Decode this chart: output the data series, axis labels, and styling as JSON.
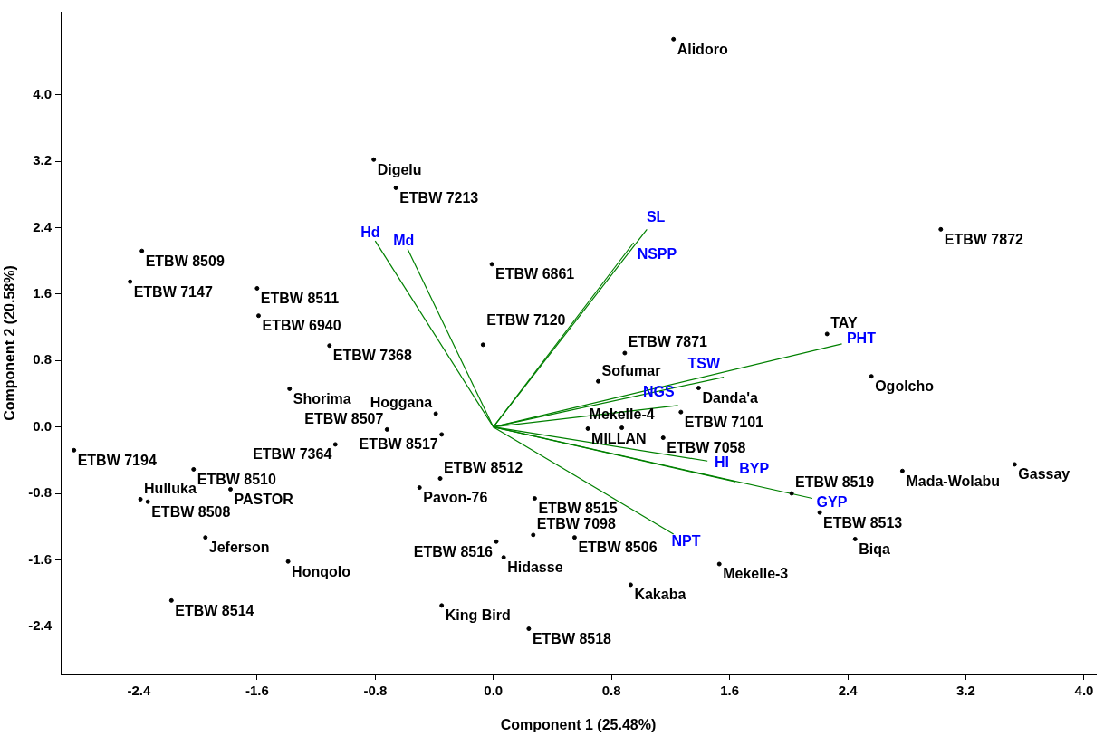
{
  "chart_data": {
    "type": "scatter",
    "xlabel": "Component 1 (25.48%)",
    "ylabel": "Component 2 (20.58%)",
    "xlim": [
      -2.93,
      4.08
    ],
    "ylim": [
      -2.98,
      5.0
    ],
    "xticks": [
      -2.4,
      -1.6,
      -0.8,
      {
        "value": 0,
        "label": "0.0"
      },
      0.8,
      1.6,
      2.4,
      3.2,
      {
        "value": 4,
        "label": "4.0"
      }
    ],
    "yticks": [
      -2.4,
      -1.6,
      -0.8,
      {
        "value": 0,
        "label": "0.0"
      },
      0.8,
      1.6,
      2.4,
      3.2,
      {
        "value": 4,
        "label": "4.0"
      }
    ],
    "grid": false,
    "legend": false,
    "marker": "circle",
    "series": [
      {
        "type": "scatter",
        "color": "#000000",
        "x": [
          1.22,
          -0.81,
          -0.66,
          -2.38,
          -2.46,
          -1.6,
          -1.59,
          -1.11,
          -1.38,
          -0.01,
          -0.07,
          -0.39,
          -0.72,
          -0.35,
          -1.07,
          -2.84,
          -2.03,
          -1.78,
          -2.39,
          -2.34,
          -1.95,
          -1.39,
          -2.18,
          -0.5,
          -0.36,
          0.28,
          0.02,
          0.07,
          0.27,
          0.55,
          0.64,
          0.87,
          0.71,
          0.89,
          1.39,
          1.27,
          1.15,
          2.26,
          2.56,
          3.03,
          2.77,
          3.53,
          2.02,
          2.21,
          2.45,
          1.53,
          0.93,
          -0.35,
          0.24
        ],
        "values": [
          4.67,
          3.22,
          2.88,
          2.12,
          1.75,
          1.67,
          1.34,
          0.98,
          0.46,
          1.96,
          0.99,
          0.16,
          -0.03,
          -0.09,
          -0.21,
          -0.28,
          -0.51,
          -0.75,
          -0.87,
          -0.9,
          -1.33,
          -1.62,
          -2.09,
          -0.73,
          -0.62,
          -0.86,
          -1.38,
          -1.57,
          -1.3,
          -1.33,
          -0.02,
          -0.01,
          0.55,
          0.89,
          0.47,
          0.18,
          -0.13,
          1.12,
          0.61,
          2.38,
          -0.53,
          -0.45,
          -0.8,
          -1.03,
          -1.35,
          -1.65,
          -1.9,
          -2.15,
          -2.43
        ],
        "value_labels": [
          "Alidoro",
          "Digelu",
          "ETBW 7213",
          "ETBW 8509",
          "ETBW 7147",
          "ETBW 8511",
          "ETBW 6940",
          "ETBW 7368",
          "Shorima",
          "ETBW 6861",
          "ETBW 7120",
          "Hoggana",
          "ETBW 8507",
          "ETBW 8517",
          "ETBW 7364",
          "ETBW 7194",
          "ETBW 8510",
          "PASTOR",
          "Hulluka",
          "ETBW 8508",
          "Jeferson",
          "Honqolo",
          "ETBW 8514",
          "Pavon-76",
          "ETBW 8512",
          "ETBW 8515",
          "ETBW 8516",
          "Hidasse",
          "ETBW 7098",
          "ETBW 8506",
          "MILLAN",
          "Mekelle-4",
          "Sofumar",
          "ETBW 7871",
          "Danda'a",
          "ETBW 7101",
          "ETBW 7058",
          "TAY",
          "Ogolcho",
          "ETBW 7872",
          "Mada-Wolabu",
          "Gassay",
          "ETBW 8519",
          "ETBW 8513",
          "Biqa",
          "Mekelle-3",
          "Kakaba",
          "King Bird",
          "ETBW 8518"
        ]
      },
      {
        "type": "line",
        "name": "Hd",
        "color": "#008000",
        "marker": "none",
        "x": [
          0,
          -0.8
        ],
        "values": [
          0,
          2.24
        ]
      },
      {
        "type": "line",
        "name": "Md",
        "color": "#008000",
        "marker": "none",
        "x": [
          0,
          -0.58
        ],
        "values": [
          0,
          2.14
        ]
      },
      {
        "type": "line",
        "name": "SL",
        "color": "#008000",
        "marker": "none",
        "x": [
          0,
          1.04
        ],
        "values": [
          0,
          2.38
        ]
      },
      {
        "type": "line",
        "name": "NSPP",
        "color": "#008000",
        "marker": "none",
        "x": [
          0,
          0.95
        ],
        "values": [
          0,
          2.22
        ]
      },
      {
        "type": "line",
        "name": "PHT",
        "color": "#008000",
        "marker": "none",
        "x": [
          0,
          2.36
        ],
        "values": [
          0,
          1.0
        ]
      },
      {
        "type": "line",
        "name": "TSW",
        "color": "#008000",
        "marker": "none",
        "x": [
          0,
          1.56
        ],
        "values": [
          0,
          0.6
        ]
      },
      {
        "type": "line",
        "name": "NGS",
        "color": "#008000",
        "marker": "none",
        "x": [
          0,
          1.25
        ],
        "values": [
          0,
          0.26
        ]
      },
      {
        "type": "line",
        "name": "HI",
        "color": "#008000",
        "marker": "none",
        "x": [
          0,
          1.45
        ],
        "values": [
          0,
          -0.41
        ]
      },
      {
        "type": "line",
        "name": "BYP",
        "color": "#008000",
        "marker": "none",
        "x": [
          0,
          1.64
        ],
        "values": [
          0,
          -0.66
        ]
      },
      {
        "type": "line",
        "name": "GYP",
        "color": "#008000",
        "marker": "none",
        "x": [
          0,
          2.16
        ],
        "values": [
          0,
          -0.86
        ]
      },
      {
        "type": "line",
        "name": "NPT",
        "color": "#008000",
        "marker": "none",
        "x": [
          0,
          1.22
        ],
        "values": [
          0,
          -1.29
        ]
      }
    ]
  }
}
